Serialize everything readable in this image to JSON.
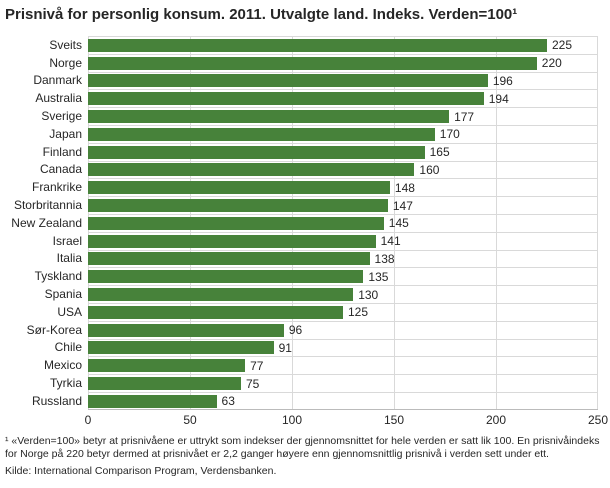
{
  "title": "Prisnivå for personlig konsum. 2011. Utvalgte land. Indeks. Verden=100¹",
  "chart_data": {
    "type": "bar",
    "orientation": "horizontal",
    "title": "Prisnivå for personlig konsum. 2011. Utvalgte land. Indeks. Verden=100¹",
    "categories": [
      "Sveits",
      "Norge",
      "Danmark",
      "Australia",
      "Sverige",
      "Japan",
      "Finland",
      "Canada",
      "Frankrike",
      "Storbritannia",
      "New Zealand",
      "Israel",
      "Italia",
      "Tyskland",
      "Spania",
      "USA",
      "Sør-Korea",
      "Chile",
      "Mexico",
      "Tyrkia",
      "Russland"
    ],
    "values": [
      225,
      220,
      196,
      194,
      177,
      170,
      165,
      160,
      148,
      147,
      145,
      141,
      138,
      135,
      130,
      125,
      96,
      91,
      77,
      75,
      63
    ],
    "xlim": [
      0,
      250
    ],
    "xticks": [
      0,
      50,
      100,
      150,
      200,
      250
    ],
    "xlabel": "",
    "ylabel": "",
    "grid": true,
    "legend": false,
    "value_labels": true,
    "bar_color": "#47823a",
    "grid_color": "#d9d9d9",
    "axis_line_color": "#bbbbbb",
    "text_color": "#262626"
  },
  "footnote": {
    "text": "¹ «Verden=100» betyr at prisnivåene er uttrykt som indekser der gjennomsnittet for hele verden er satt lik 100. En prisnivåindeks for Norge på 220 betyr dermed at prisnivået er 2,2 ganger høyere enn gjennomsnittlig prisnivå i verden sett under ett.",
    "source": "Kilde: International Comparison Program, Verdensbanken."
  }
}
